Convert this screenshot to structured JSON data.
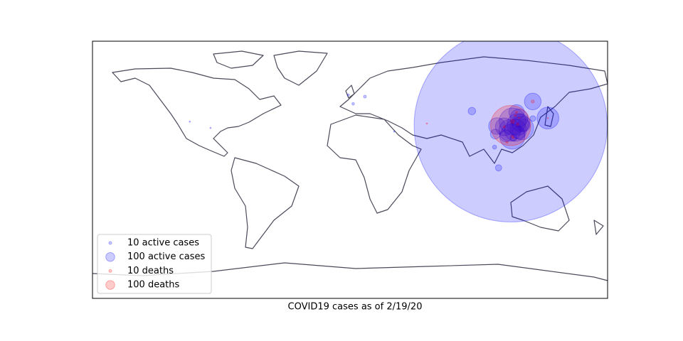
{
  "chart_data": {
    "type": "bubble-map",
    "title": "COVID19 cases as of 2/19/20",
    "xlim": [
      -180,
      180
    ],
    "ylim": [
      -90,
      90
    ],
    "legend_position": "lower left",
    "series": [
      {
        "name": "active cases",
        "color": "#0000ff",
        "lon": [
          112.27,
          113.4,
          113.6,
          120.1,
          111.7,
          117.2,
          115.7,
          118.1,
          119.4,
          107.8,
          102.7,
          127.7,
          116.4,
          121.4,
          117.9,
          108.8,
          101.5,
          85.2,
          138.3,
          127.8,
          103.8,
          101.0,
          114.2,
          10.4,
          2.2,
          -1.2,
          -112.0,
          -97.5,
          30.8
        ],
        "lat": [
          30.98,
          23.3,
          33.9,
          29.2,
          27.6,
          31.8,
          27.6,
          36.3,
          32.9,
          30.1,
          30.6,
          47.8,
          40.2,
          31.2,
          26.0,
          23.8,
          25.0,
          41.1,
          36.2,
          35.9,
          1.35,
          15.9,
          22.3,
          51.2,
          46.2,
          52.4,
          33.7,
          29.3,
          26.8
        ],
        "values": [
          47000,
          800,
          900,
          700,
          600,
          600,
          600,
          400,
          400,
          400,
          350,
          350,
          300,
          200,
          200,
          180,
          120,
          70,
          600,
          40,
          50,
          20,
          55,
          10,
          8,
          6,
          1,
          1,
          1
        ]
      },
      {
        "name": "deaths",
        "color": "#ff0000",
        "lon": [
          112.27,
          113.6,
          127.7,
          107.8,
          113.4,
          109.7,
          116.4,
          117.2,
          115.5,
          118.1,
          138.3,
          114.2,
          53.7
        ],
        "lat": [
          30.98,
          33.9,
          47.8,
          30.1,
          23.3,
          19.2,
          40.2,
          31.8,
          38.0,
          36.3,
          36.2,
          22.3,
          32.4
        ],
        "values": [
          2029,
          19,
          12,
          5,
          5,
          4,
          4,
          6,
          3,
          2,
          1,
          1,
          2
        ]
      }
    ],
    "legend": [
      {
        "label": "10 active cases",
        "value": 10,
        "color": "#0000ff"
      },
      {
        "label": "100 active cases",
        "value": 100,
        "color": "#0000ff"
      },
      {
        "label": "10 deaths",
        "value": 10,
        "color": "#ff0000"
      },
      {
        "label": "100 deaths",
        "value": 100,
        "color": "#ff0000"
      }
    ]
  }
}
